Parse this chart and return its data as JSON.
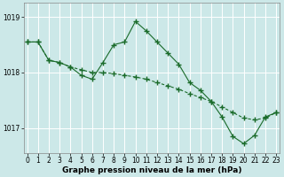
{
  "bg_color": "#cce8e8",
  "plot_bg_color": "#cce8e8",
  "grid_color": "#ffffff",
  "line_color": "#1a6b2a",
  "marker": "+",
  "marker_size": 4,
  "marker_linewidth": 1.0,
  "linewidth": 0.8,
  "line1_style": "-",
  "line2_style": "--",
  "line2_dashes": [
    3,
    2
  ],
  "line1_data": [
    [
      0,
      1018.55
    ],
    [
      1,
      1018.55
    ],
    [
      2,
      1018.22
    ],
    [
      3,
      1018.18
    ],
    [
      4,
      1018.1
    ],
    [
      5,
      1017.95
    ],
    [
      6,
      1017.88
    ],
    [
      7,
      1018.18
    ],
    [
      8,
      1018.5
    ],
    [
      9,
      1018.55
    ],
    [
      10,
      1018.92
    ],
    [
      11,
      1018.75
    ],
    [
      12,
      1018.55
    ],
    [
      13,
      1018.35
    ],
    [
      14,
      1018.15
    ],
    [
      15,
      1017.82
    ],
    [
      16,
      1017.68
    ],
    [
      17,
      1017.48
    ],
    [
      18,
      1017.2
    ],
    [
      19,
      1016.85
    ],
    [
      20,
      1016.72
    ],
    [
      21,
      1016.87
    ],
    [
      22,
      1017.2
    ],
    [
      23,
      1017.28
    ]
  ],
  "line2_data": [
    [
      0,
      1018.55
    ],
    [
      1,
      1018.55
    ],
    [
      2,
      1018.22
    ],
    [
      3,
      1018.18
    ],
    [
      4,
      1018.1
    ],
    [
      5,
      1018.05
    ],
    [
      6,
      1018.0
    ],
    [
      7,
      1018.0
    ],
    [
      8,
      1017.98
    ],
    [
      9,
      1017.95
    ],
    [
      10,
      1017.92
    ],
    [
      11,
      1017.88
    ],
    [
      12,
      1017.82
    ],
    [
      13,
      1017.76
    ],
    [
      14,
      1017.7
    ],
    [
      15,
      1017.62
    ],
    [
      16,
      1017.55
    ],
    [
      17,
      1017.48
    ],
    [
      18,
      1017.38
    ],
    [
      19,
      1017.28
    ],
    [
      20,
      1017.18
    ],
    [
      21,
      1017.15
    ],
    [
      22,
      1017.18
    ],
    [
      23,
      1017.28
    ]
  ],
  "xlabel": "Graphe pression niveau de la mer (hPa)",
  "xlim": [
    -0.3,
    23.3
  ],
  "ylim": [
    1016.55,
    1019.25
  ],
  "yticks": [
    1017,
    1018,
    1019
  ],
  "xticks": [
    0,
    1,
    2,
    3,
    4,
    5,
    6,
    7,
    8,
    9,
    10,
    11,
    12,
    13,
    14,
    15,
    16,
    17,
    18,
    19,
    20,
    21,
    22,
    23
  ],
  "tick_fontsize": 5.5,
  "xlabel_fontsize": 6.5,
  "linewidth_spine": 0.5
}
